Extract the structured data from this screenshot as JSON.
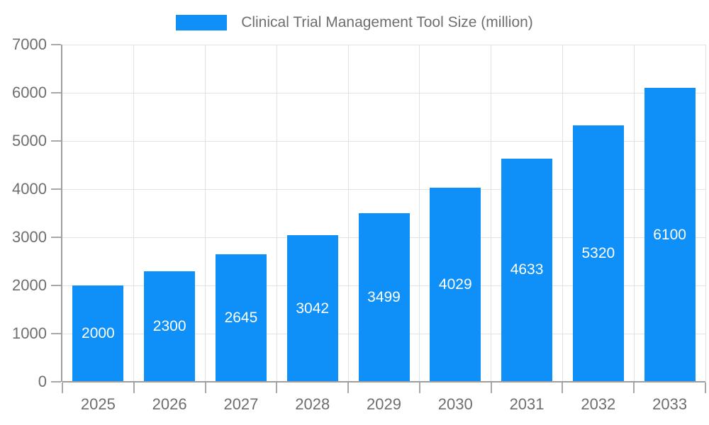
{
  "chart_data": {
    "type": "bar",
    "title": "Clinical Trial Management Tool Size (million)",
    "series_name": "Clinical Trial Management Tool Size (million)",
    "categories": [
      "2025",
      "2026",
      "2027",
      "2028",
      "2029",
      "2030",
      "2031",
      "2032",
      "2033"
    ],
    "values": [
      2000,
      2300,
      2645,
      3042,
      3499,
      4029,
      4633,
      5320,
      6100
    ],
    "xlabel": "",
    "ylabel": "",
    "ylim": [
      0,
      7000
    ],
    "yticks": [
      0,
      1000,
      2000,
      3000,
      4000,
      5000,
      6000,
      7000
    ],
    "grid": true,
    "legend_position": "top-center",
    "value_labels": "inside-center"
  },
  "style": {
    "background_color": "#ffffff",
    "bar_color": "#0e90f8",
    "axis_line_color": "#9e9e9e",
    "gridline_color": "#e2e2e2",
    "tick_color": "#a8a8a8",
    "axis_label_color": "#6e6e6e",
    "title_color": "#6e6e6e",
    "bar_label_color": "#ffffff"
  }
}
